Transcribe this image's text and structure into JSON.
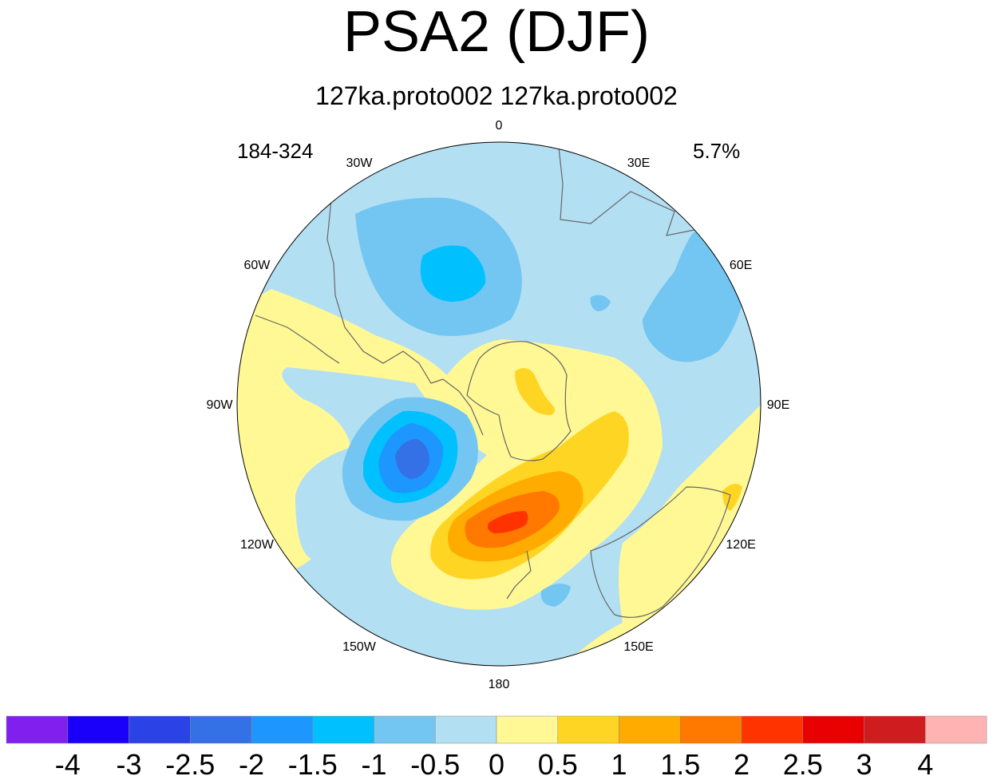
{
  "title": "PSA2 (DJF)",
  "subtitle": "127ka.proto002  127ka.proto002",
  "left_annotation": "184-324",
  "right_annotation": "5.7%",
  "longitude_labels": [
    {
      "text": "0",
      "lon": 0
    },
    {
      "text": "30E",
      "lon": 30
    },
    {
      "text": "60E",
      "lon": 60
    },
    {
      "text": "90E",
      "lon": 90
    },
    {
      "text": "120E",
      "lon": 120
    },
    {
      "text": "150E",
      "lon": 150
    },
    {
      "text": "180",
      "lon": 180
    },
    {
      "text": "150W",
      "lon": -150
    },
    {
      "text": "120W",
      "lon": -120
    },
    {
      "text": "90W",
      "lon": -90
    },
    {
      "text": "60W",
      "lon": -60
    },
    {
      "text": "30W",
      "lon": -30
    }
  ],
  "colorbar": {
    "colors": [
      "#8120ee",
      "#1a00fa",
      "#2b42e7",
      "#3470e6",
      "#1d96fd",
      "#00c0fe",
      "#72c6f1",
      "#b3dff3",
      "#fff895",
      "#ffd524",
      "#ffab00",
      "#ff7800",
      "#ff3300",
      "#e90000",
      "#cf1c1e",
      "#ffb3b3"
    ],
    "labels": [
      "-4",
      "-3",
      "-2.5",
      "-2",
      "-1.5",
      "-1",
      "-0.5",
      "0",
      "0.5",
      "1",
      "1.5",
      "2",
      "2.5",
      "3",
      "4"
    ]
  },
  "colors": {
    "ocean_background": "#b3dff3",
    "coastline": "#666666"
  }
}
